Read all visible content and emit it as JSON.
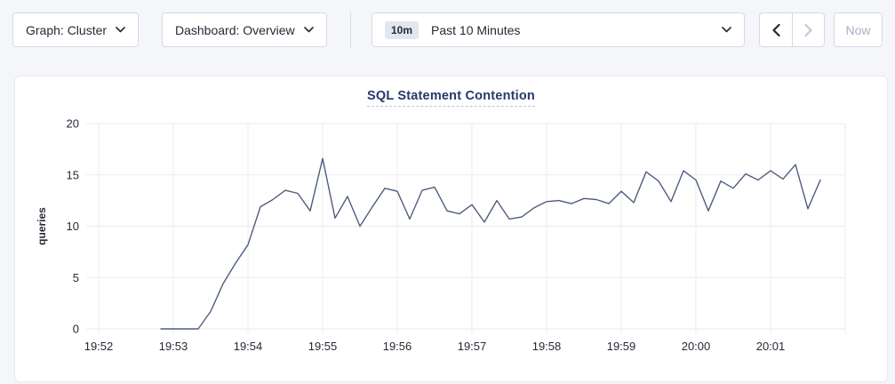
{
  "toolbar": {
    "graph_dropdown": {
      "label": "Graph: Cluster"
    },
    "dashboard_dropdown": {
      "label": "Dashboard: Overview"
    },
    "time_picker": {
      "badge": "10m",
      "label": "Past 10 Minutes"
    },
    "now_button": {
      "label": "Now"
    }
  },
  "colors": {
    "page_background": "#f4f6fa",
    "card_background": "#ffffff",
    "title_blue": "#26386b",
    "text_dark": "#242a35",
    "disabled_gray": "#a9b1c0",
    "gridline": "#ebebee",
    "line": "#4e5d80"
  },
  "chart_data": {
    "type": "line",
    "title": "SQL Statement Contention",
    "xlabel": "",
    "ylabel": "queries",
    "ylim": [
      0,
      20
    ],
    "yticks": [
      0,
      5,
      10,
      15,
      20
    ],
    "xticks": [
      "19:52",
      "19:53",
      "19:54",
      "19:55",
      "19:56",
      "19:57",
      "19:58",
      "19:59",
      "20:00",
      "20:01"
    ],
    "extra_gridlines": [
      "20:02"
    ],
    "x_domain": [
      "19:51:50",
      "20:02:00"
    ],
    "grid": true,
    "legend_position": "none",
    "line_color": "#4e5d80",
    "series": [
      {
        "name": "queries",
        "start": "19:52:50",
        "interval_seconds": 10,
        "values": [
          0,
          0,
          0,
          0,
          1.7,
          4.4,
          6.4,
          8.2,
          11.9,
          12.6,
          13.5,
          13.2,
          11.5,
          16.6,
          10.8,
          12.9,
          10.0,
          11.9,
          13.7,
          13.4,
          10.7,
          13.5,
          13.8,
          11.5,
          11.2,
          12.1,
          10.4,
          12.5,
          10.7,
          10.9,
          11.8,
          12.4,
          12.5,
          12.2,
          12.7,
          12.6,
          12.2,
          13.4,
          12.3,
          15.3,
          14.4,
          12.4,
          15.4,
          14.5,
          11.5,
          14.4,
          13.7,
          15.1,
          14.5,
          15.4,
          14.6,
          16.0,
          11.7,
          14.5
        ]
      }
    ]
  }
}
